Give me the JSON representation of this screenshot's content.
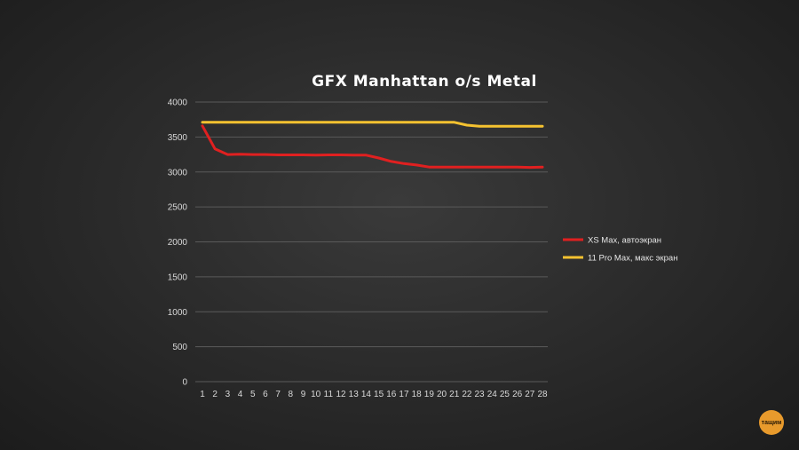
{
  "chart_data": {
    "type": "line",
    "title": "GFX Manhattan o/s Metal",
    "xlabel": "",
    "ylabel": "",
    "x": [
      1,
      2,
      3,
      4,
      5,
      6,
      7,
      8,
      9,
      10,
      11,
      12,
      13,
      14,
      15,
      16,
      17,
      18,
      19,
      20,
      21,
      22,
      23,
      24,
      25,
      26,
      27,
      28
    ],
    "ylim": [
      0,
      4000
    ],
    "yticks": [
      0,
      500,
      1000,
      1500,
      2000,
      2500,
      3000,
      3500,
      4000
    ],
    "grid": true,
    "legend_position": "right",
    "series": [
      {
        "name": "XS Max, автоэкран",
        "color": "#e02020",
        "values": [
          3660,
          3330,
          3250,
          3255,
          3250,
          3250,
          3245,
          3245,
          3245,
          3240,
          3245,
          3245,
          3240,
          3240,
          3200,
          3150,
          3120,
          3100,
          3070,
          3070,
          3070,
          3070,
          3070,
          3070,
          3070,
          3070,
          3065,
          3070
        ]
      },
      {
        "name": "11 Pro Max, макс экран",
        "color": "#f5c230",
        "values": [
          3710,
          3710,
          3710,
          3710,
          3710,
          3710,
          3710,
          3710,
          3710,
          3710,
          3710,
          3710,
          3710,
          3710,
          3710,
          3710,
          3710,
          3710,
          3710,
          3710,
          3710,
          3670,
          3655,
          3655,
          3655,
          3655,
          3655,
          3655
        ]
      }
    ]
  },
  "logo_text": "тащим"
}
